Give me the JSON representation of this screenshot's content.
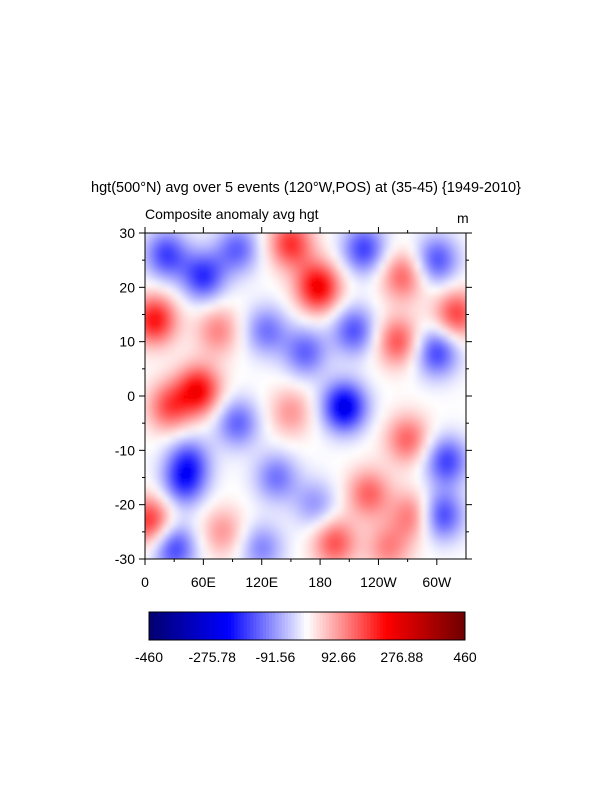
{
  "chart_data": {
    "type": "heatmap",
    "title": "hgt(500°N) avg over 5 events (120°W,POS) at (35-45) {1949-2010}",
    "subtitle": "Composite anomaly avg hgt",
    "units": "m",
    "x_ticks": [
      "0",
      "60E",
      "120E",
      "180",
      "120W",
      "60W"
    ],
    "y_ticks": [
      "30",
      "20",
      "10",
      "0",
      "-10",
      "-20",
      "-30"
    ],
    "ylim": [
      -30,
      30
    ],
    "xlim_degrees_east": [
      0,
      330
    ],
    "colorbar": {
      "min": -460,
      "max": 460,
      "labels": [
        "-460",
        "-275.78",
        "-91.56",
        "92.66",
        "276.88",
        "460"
      ],
      "colors": [
        "#03006e",
        "#0000ff",
        "#ffffff",
        "#ff0000",
        "#6e0000"
      ]
    },
    "field_note_blobs": [
      {
        "lon": 22,
        "lat": 26,
        "v": -0.55
      },
      {
        "lon": 60,
        "lat": 22,
        "v": -0.6
      },
      {
        "lon": 95,
        "lat": 27,
        "v": -0.45
      },
      {
        "lon": 150,
        "lat": 28,
        "v": 0.6
      },
      {
        "lon": 178,
        "lat": 20,
        "v": 0.8
      },
      {
        "lon": 225,
        "lat": 27,
        "v": -0.55
      },
      {
        "lon": 265,
        "lat": 22,
        "v": 0.45
      },
      {
        "lon": 300,
        "lat": 25,
        "v": -0.5
      },
      {
        "lon": 10,
        "lat": 14,
        "v": 0.7
      },
      {
        "lon": 75,
        "lat": 12,
        "v": 0.35
      },
      {
        "lon": 125,
        "lat": 12,
        "v": -0.4
      },
      {
        "lon": 165,
        "lat": 8,
        "v": -0.45
      },
      {
        "lon": 215,
        "lat": 12,
        "v": -0.5
      },
      {
        "lon": 260,
        "lat": 10,
        "v": 0.5
      },
      {
        "lon": 300,
        "lat": 8,
        "v": -0.55
      },
      {
        "lon": 320,
        "lat": 15,
        "v": 0.55
      },
      {
        "lon": 55,
        "lat": 1,
        "v": 0.75
      },
      {
        "lon": 25,
        "lat": -2,
        "v": 0.5
      },
      {
        "lon": 95,
        "lat": -5,
        "v": -0.45
      },
      {
        "lon": 205,
        "lat": -2,
        "v": -0.85
      },
      {
        "lon": 150,
        "lat": -3,
        "v": 0.3
      },
      {
        "lon": 270,
        "lat": -8,
        "v": 0.45
      },
      {
        "lon": 310,
        "lat": -12,
        "v": -0.55
      },
      {
        "lon": 40,
        "lat": -16,
        "v": -0.5
      },
      {
        "lon": 45,
        "lat": -12,
        "v": -0.45
      },
      {
        "lon": 135,
        "lat": -15,
        "v": -0.4
      },
      {
        "lon": 175,
        "lat": -20,
        "v": -0.3
      },
      {
        "lon": 230,
        "lat": -18,
        "v": 0.45
      },
      {
        "lon": 275,
        "lat": -22,
        "v": 0.4
      },
      {
        "lon": 305,
        "lat": -22,
        "v": -0.55
      },
      {
        "lon": 5,
        "lat": -23,
        "v": 0.6
      },
      {
        "lon": 80,
        "lat": -25,
        "v": 0.3
      },
      {
        "lon": 30,
        "lat": -28,
        "v": -0.55
      },
      {
        "lon": 120,
        "lat": -28,
        "v": -0.35
      },
      {
        "lon": 195,
        "lat": -27,
        "v": 0.5
      },
      {
        "lon": 250,
        "lat": -28,
        "v": 0.35
      }
    ]
  }
}
